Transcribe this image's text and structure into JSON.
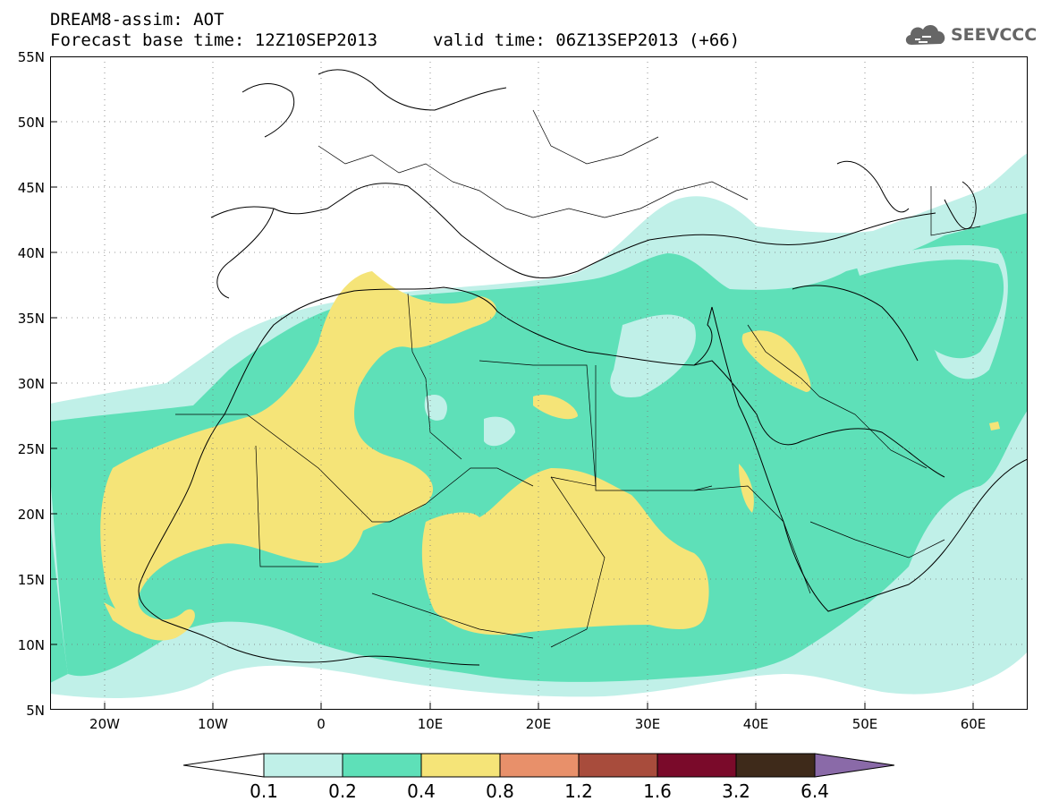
{
  "header": {
    "title": "DREAM8-assim: AOT",
    "base_time": "Forecast base time: 12Z10SEP2013",
    "valid_time": "valid time: 06Z13SEP2013 (+66)"
  },
  "logo": {
    "text": "SEEVCCC",
    "icon": "cloud-icon",
    "color": "#666666"
  },
  "map": {
    "projection": "lat-lon",
    "lon_range": [
      -25,
      65
    ],
    "lat_range": [
      5,
      55
    ],
    "lat_ticks": [
      "55N",
      "50N",
      "45N",
      "40N",
      "35N",
      "30N",
      "25N",
      "20N",
      "15N",
      "10N",
      "5N"
    ],
    "lon_ticks": [
      "20W",
      "10W",
      "0",
      "10E",
      "20E",
      "30E",
      "40E",
      "50E",
      "60E"
    ],
    "grid": true
  },
  "legend": {
    "levels": [
      "0.1",
      "0.2",
      "0.4",
      "0.8",
      "1.2",
      "1.6",
      "3.2",
      "6.4"
    ],
    "colors": [
      "#ffffff",
      "#c0f0e8",
      "#5ee0b8",
      "#f5e478",
      "#e8906a",
      "#a84c3c",
      "#7a0a2a",
      "#3e2a1a",
      "#8a6aa8"
    ]
  }
}
